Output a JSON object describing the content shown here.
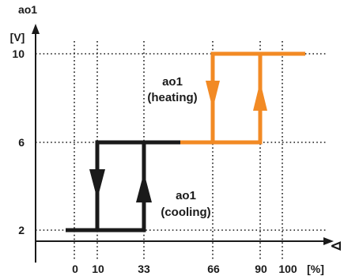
{
  "axes": {
    "y_title": "ao1",
    "y_unit": "[V]",
    "x_unit": "[%]",
    "x_symbol": "⊲"
  },
  "y_ticks": [
    {
      "label": "10",
      "value": 10
    },
    {
      "label": "6",
      "value": 6
    },
    {
      "label": "2",
      "value": 2
    }
  ],
  "x_ticks": [
    {
      "label": "0",
      "value": 0
    },
    {
      "label": "10",
      "value": 10
    },
    {
      "label": "33",
      "value": 33
    },
    {
      "label": "66",
      "value": 66
    },
    {
      "label": "90",
      "value": 90
    },
    {
      "label": "100",
      "value": 100
    }
  ],
  "curves": {
    "heating": {
      "line1": "ao1",
      "line2": "(heating)",
      "color": "#f28a24",
      "thresholds_percent": [
        66,
        90
      ],
      "output_range_volts": [
        6,
        10
      ]
    },
    "cooling": {
      "line1": "ao1",
      "line2": "(cooling)",
      "color": "#1a1a1a",
      "thresholds_percent": [
        10,
        33
      ],
      "output_range_volts": [
        2,
        6
      ]
    }
  },
  "colors": {
    "axis": "#1a1a1a",
    "heating": "#f28a24",
    "cooling": "#1a1a1a"
  }
}
